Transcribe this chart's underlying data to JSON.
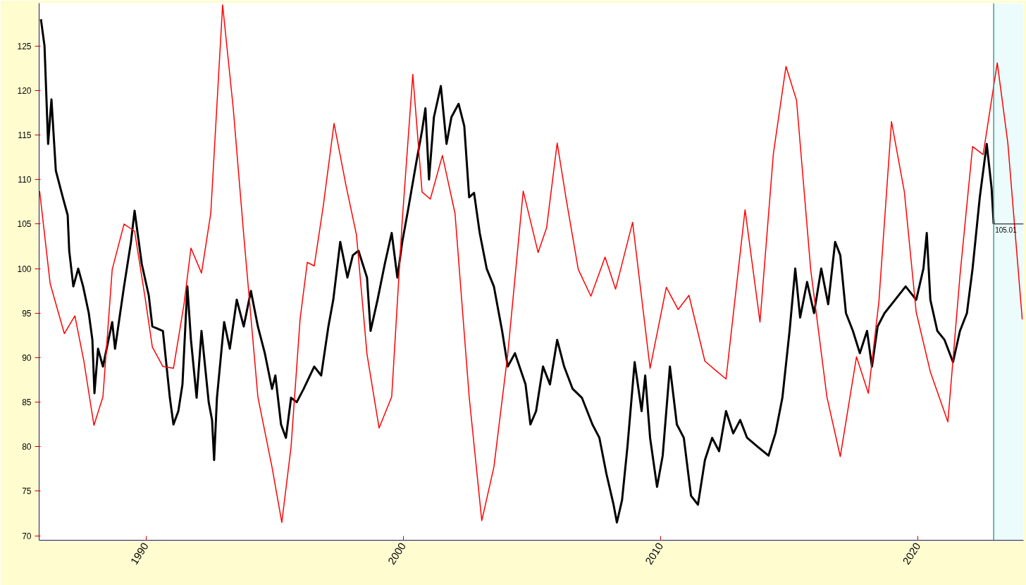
{
  "chart_data": {
    "type": "line",
    "xlim": [
      1985.85,
      2024.1
    ],
    "ylim": [
      69.5,
      129.8
    ],
    "xticks": [
      1990,
      2000,
      2010,
      2020
    ],
    "yticks": [
      70,
      75,
      80,
      85,
      90,
      95,
      100,
      105,
      110,
      115,
      120,
      125
    ],
    "grid": false,
    "marker": "none",
    "line_style": "solid",
    "series": [
      {
        "color": "#000000",
        "x": [
          1985.92,
          1986.06,
          1986.2,
          1986.33,
          1986.5,
          1986.77,
          1986.96,
          1987.02,
          1987.18,
          1987.37,
          1987.56,
          1987.78,
          1987.92,
          1988.0,
          1988.14,
          1988.33,
          1988.69,
          1988.8,
          1989.15,
          1989.42,
          1989.56,
          1989.84,
          1990.11,
          1990.25,
          1990.66,
          1990.93,
          1991.07,
          1991.26,
          1991.42,
          1991.61,
          1991.75,
          1991.97,
          1992.16,
          1992.44,
          1992.57,
          1992.65,
          1992.76,
          1993.04,
          1993.26,
          1993.53,
          1993.8,
          1994.08,
          1994.35,
          1994.62,
          1994.9,
          1995.03,
          1995.25,
          1995.44,
          1995.64,
          1995.86,
          1996.13,
          1996.54,
          1996.81,
          1997.09,
          1997.28,
          1997.55,
          1997.83,
          1998.04,
          1998.26,
          1998.59,
          1998.73,
          1999.0,
          1999.28,
          1999.55,
          1999.77,
          1999.96,
          2000.18,
          2000.51,
          2000.73,
          2000.86,
          2001.0,
          2001.19,
          2001.46,
          2001.68,
          2001.87,
          2002.15,
          2002.37,
          2002.56,
          2002.75,
          2002.97,
          2003.24,
          2003.52,
          2003.84,
          2004.06,
          2004.34,
          2004.75,
          2004.94,
          2005.16,
          2005.43,
          2005.7,
          2005.98,
          2006.25,
          2006.58,
          2006.94,
          2007.35,
          2007.62,
          2007.89,
          2008.17,
          2008.3,
          2008.5,
          2008.71,
          2008.99,
          2009.26,
          2009.4,
          2009.59,
          2009.86,
          2010.08,
          2010.36,
          2010.63,
          2010.9,
          2011.18,
          2011.45,
          2011.72,
          2012.0,
          2012.27,
          2012.54,
          2012.82,
          2013.09,
          2013.36,
          2013.77,
          2014.19,
          2014.46,
          2014.73,
          2015.01,
          2015.23,
          2015.42,
          2015.69,
          2015.96,
          2016.24,
          2016.51,
          2016.78,
          2016.98,
          2017.2,
          2017.47,
          2017.74,
          2018.02,
          2018.21,
          2018.43,
          2018.7,
          2019.11,
          2019.52,
          2019.93,
          2020.21,
          2020.34,
          2020.48,
          2020.75,
          2021.03,
          2021.36,
          2021.63,
          2021.9,
          2022.12,
          2022.4,
          2022.67,
          2022.86,
          2022.94
        ],
        "values": [
          128,
          125,
          114,
          119,
          111,
          108,
          106,
          102,
          98,
          100,
          98,
          95,
          92,
          86,
          91,
          89,
          94,
          91,
          98,
          103,
          106.5,
          100.5,
          97,
          93.5,
          93,
          85.5,
          82.5,
          84,
          87,
          98,
          92,
          85.5,
          93,
          85,
          83,
          78.5,
          85.5,
          94,
          91,
          96.5,
          93.5,
          97.5,
          93.5,
          90.5,
          86.5,
          88,
          82.5,
          81,
          85.5,
          85,
          86.5,
          89,
          88,
          93.5,
          96.5,
          103,
          99,
          101.5,
          102,
          99,
          93,
          96.5,
          100.5,
          104,
          99,
          103,
          106.5,
          112,
          115.5,
          118,
          110,
          117,
          120.5,
          114,
          117,
          118.5,
          116,
          108,
          108.5,
          104,
          100,
          98,
          93,
          89,
          90.5,
          87,
          82.5,
          84,
          89,
          87,
          92,
          89,
          86.5,
          85.5,
          82.5,
          81,
          77,
          73.5,
          71.5,
          74,
          80,
          89.5,
          84,
          88,
          81,
          75.5,
          79,
          89,
          82.5,
          81,
          74.5,
          73.5,
          78.5,
          81,
          79.5,
          84,
          81.5,
          83,
          81,
          80,
          79,
          81.5,
          85.5,
          93,
          100,
          94.5,
          98.5,
          95,
          100,
          96,
          103,
          101.5,
          95,
          93,
          90.5,
          93,
          89,
          93.5,
          95,
          96.5,
          98,
          96.5,
          100,
          104,
          96.5,
          93,
          92,
          89.5,
          93,
          95,
          100,
          108,
          114,
          109,
          105
        ]
      },
      {
        "color": "#ff0000",
        "x": [
          1985.87,
          1986.28,
          1986.83,
          1987.24,
          1987.59,
          1987.98,
          1988.33,
          1988.69,
          1989.15,
          1989.56,
          1989.97,
          1990.25,
          1990.66,
          1991.07,
          1991.48,
          1991.75,
          1992.16,
          1992.52,
          1992.98,
          1993.39,
          1993.8,
          1994.35,
          1994.9,
          1995.28,
          1995.64,
          1995.99,
          1996.27,
          1996.54,
          1996.89,
          1997.31,
          1997.77,
          1998.18,
          1998.59,
          1999.06,
          1999.55,
          1999.96,
          2000.37,
          2000.73,
          2001.05,
          2001.52,
          2002.01,
          2002.56,
          2003.05,
          2003.52,
          2004.06,
          2004.66,
          2005.24,
          2005.57,
          2005.98,
          2006.33,
          2006.8,
          2007.29,
          2007.84,
          2008.25,
          2008.91,
          2009.59,
          2010.22,
          2010.68,
          2011.1,
          2011.72,
          2012.54,
          2013.28,
          2013.86,
          2014.38,
          2014.87,
          2015.28,
          2015.83,
          2016.46,
          2016.98,
          2017.61,
          2018.07,
          2018.48,
          2018.97,
          2019.47,
          2019.93,
          2020.48,
          2021.16,
          2021.63,
          2022.12,
          2022.53,
          2023.08,
          2023.49,
          2024.05
        ],
        "values": [
          108.7,
          98.3,
          92.7,
          94.7,
          89.6,
          82.4,
          85.6,
          99.9,
          105,
          104.2,
          96.7,
          91.2,
          89,
          88.8,
          96,
          102.3,
          99.5,
          106.2,
          129.6,
          118.1,
          103.8,
          85.6,
          77.7,
          71.5,
          80,
          94.3,
          100.7,
          100.3,
          107,
          116.3,
          109.4,
          103.8,
          90.4,
          82.1,
          85.6,
          105.4,
          121.8,
          108.6,
          107.8,
          112.7,
          106.2,
          85.6,
          71.7,
          77.7,
          90.4,
          108.7,
          101.8,
          104.6,
          114.1,
          107.8,
          99.9,
          96.9,
          101.3,
          97.7,
          105.2,
          88.8,
          97.9,
          95.4,
          97,
          89.6,
          87.6,
          106.6,
          94,
          112.9,
          122.7,
          118.9,
          99.9,
          85.6,
          78.9,
          90.1,
          86,
          96.3,
          116.5,
          108.6,
          95.1,
          88.4,
          82.8,
          99.2,
          113.7,
          112.8,
          123.1,
          114.1,
          94.3
        ]
      }
    ],
    "bands": [
      {
        "axis": "x",
        "from": 2022.94,
        "to": 2024.1,
        "color": "#ecfcfc"
      }
    ],
    "ref_lines": [
      {
        "axis": "x",
        "value": 2022.94,
        "color": "#3c9c9c"
      },
      {
        "axis": "y",
        "value": 105.01,
        "label": "105.01",
        "color": "#000000"
      }
    ]
  }
}
